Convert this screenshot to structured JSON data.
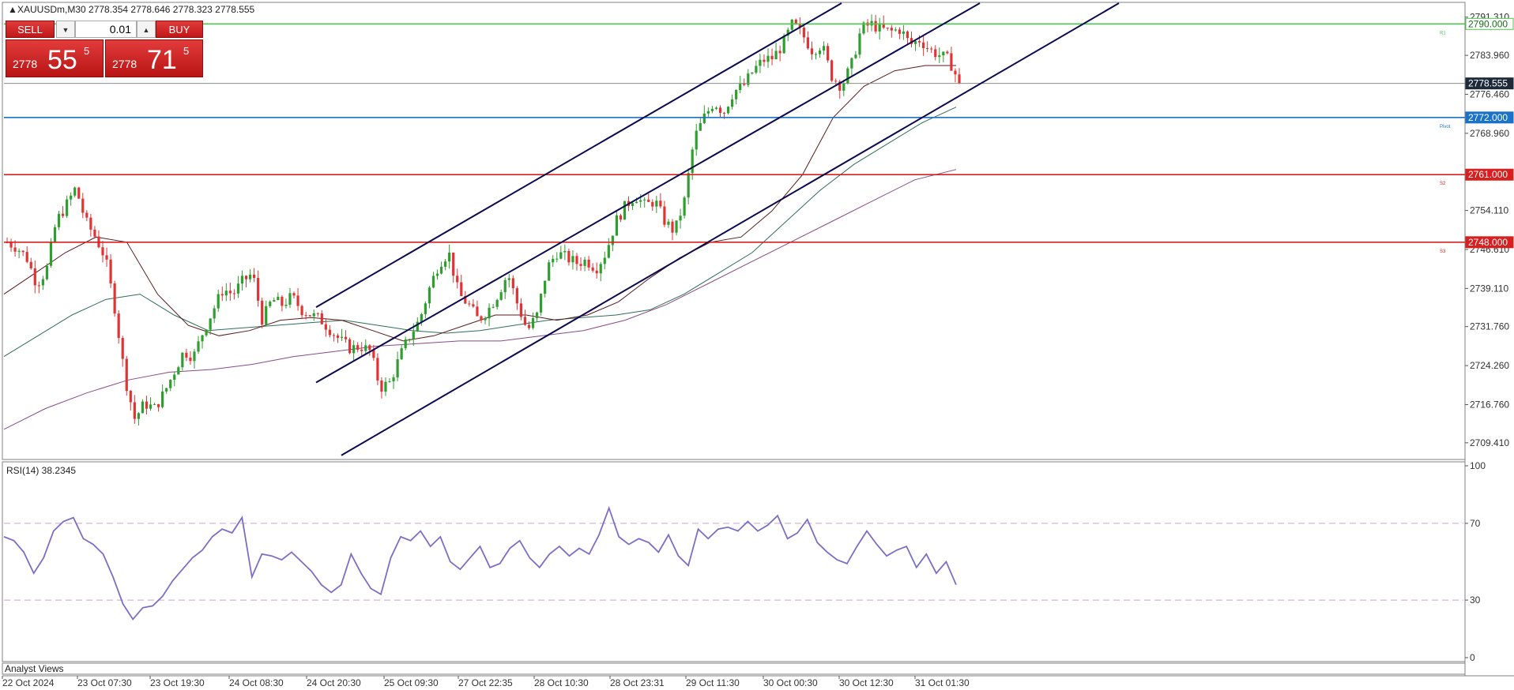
{
  "symbol_header": "XAUUSDm,M30  2778.354 2778.646 2778.323 2778.555",
  "trade_panel": {
    "sell_label": "SELL",
    "buy_label": "BUY",
    "lot_value": "0.01",
    "sell_price_prefix": "2778",
    "sell_price_big": "55",
    "sell_price_sup": "5",
    "buy_price_prefix": "2778",
    "buy_price_big": "71",
    "buy_price_sup": "5"
  },
  "indicator_label": "RSI(14) 38.2345",
  "analyst_views_label": "Analyst Views",
  "price_axis_labels": [
    "2791.310",
    "2783.960",
    "2776.460",
    "2768.960",
    "2754.110",
    "2746.610",
    "2739.110",
    "2731.760",
    "2724.260",
    "2716.760",
    "2709.410"
  ],
  "rsi_axis_labels": [
    "100",
    "70",
    "30",
    "0"
  ],
  "time_labels": [
    "22 Oct 2024",
    "23 Oct 07:30",
    "23 Oct 19:30",
    "24 Oct 08:30",
    "24 Oct 20:30",
    "25 Oct 09:30",
    "27 Oct 22:35",
    "28 Oct 10:30",
    "28 Oct 23:31",
    "29 Oct 11:30",
    "30 Oct 00:30",
    "30 Oct 12:30",
    "31 Oct 01:30"
  ],
  "level_tags": {
    "current": "2778.555",
    "r1": "2790.000",
    "pivot": "2772.000",
    "s2": "2761.000",
    "s3": "2748.000"
  },
  "level_small_labels": {
    "r1": "R1",
    "pivot": "Pivot",
    "s2": "S2",
    "s3": "S3"
  },
  "colors": {
    "bull": "#2e9e2e",
    "bear": "#e03434",
    "channel": "#0a0a50",
    "r1": "#4ec94e",
    "pivot": "#1a73c8",
    "support": "#d62020",
    "rsi": "#7a6fc6",
    "ma_fast": "#5a1a1a",
    "ma_mid": "#2e6e5a",
    "ma_slow": "#8a4a8a"
  },
  "chart_data": [
    {
      "type": "candlestick",
      "title": "XAUUSDm,M30",
      "timeframe": "M30",
      "ohlc_header": {
        "open": 2778.354,
        "high": 2778.646,
        "low": 2778.323,
        "close": 2778.555
      },
      "ylim": [
        2706.5,
        2794.0
      ],
      "x_ticks": [
        "22 Oct 2024",
        "23 Oct 07:30",
        "23 Oct 19:30",
        "24 Oct 08:30",
        "24 Oct 20:30",
        "25 Oct 09:30",
        "27 Oct 22:35",
        "28 Oct 10:30",
        "28 Oct 23:31",
        "29 Oct 11:30",
        "30 Oct 00:30",
        "30 Oct 12:30",
        "31 Oct 01:30"
      ],
      "close_path": [
        2748.0,
        2747.0,
        2745.0,
        2740.0,
        2742.5,
        2752.0,
        2755.0,
        2758.5,
        2752.0,
        2749.0,
        2745.0,
        2735.0,
        2722.0,
        2714.0,
        2717.0,
        2716.0,
        2719.0,
        2723.0,
        2727.0,
        2726.0,
        2731.0,
        2735.0,
        2739.0,
        2738.0,
        2740.5,
        2742.0,
        2733.0,
        2737.0,
        2736.0,
        2737.5,
        2735.0,
        2734.0,
        2733.0,
        2731.0,
        2729.0,
        2727.5,
        2728.0,
        2727.0,
        2720.0,
        2721.0,
        2726.0,
        2730.0,
        2733.0,
        2739.0,
        2744.0,
        2746.0,
        2738.0,
        2736.0,
        2733.0,
        2735.0,
        2738.0,
        2742.0,
        2736.0,
        2731.0,
        2734.0,
        2743.0,
        2746.0,
        2745.0,
        2744.0,
        2744.5,
        2743.0,
        2746.0,
        2752.0,
        2755.0,
        2757.0,
        2755.0,
        2756.0,
        2752.0,
        2750.0,
        2756.0,
        2768.0,
        2772.0,
        2775.0,
        2773.0,
        2777.0,
        2778.0,
        2781.0,
        2783.0,
        2783.5,
        2786.0,
        2790.0,
        2788.0,
        2785.0,
        2786.0,
        2780.0,
        2778.0,
        2782.0,
        2789.0,
        2790.0,
        2789.0,
        2788.5,
        2789.0,
        2786.0,
        2787.0,
        2785.0,
        2784.0,
        2783.0,
        2778.555
      ],
      "horizontal_levels": [
        {
          "name": "R1",
          "value": 2790.0
        },
        {
          "name": "Pivot",
          "value": 2772.0
        },
        {
          "name": "S2",
          "value": 2761.0
        },
        {
          "name": "S3",
          "value": 2748.0
        },
        {
          "name": "Bid",
          "value": 2778.555
        }
      ],
      "moving_averages": [
        {
          "name": "MA fast",
          "values": [
            2738.0,
            2742.0,
            2746.0,
            2749.0,
            2748.0,
            2738.0,
            2732.0,
            2730.0,
            2731.0,
            2733.0,
            2733.5,
            2733.0,
            2731.0,
            2729.0,
            2730.0,
            2732.0,
            2734.0,
            2734.0,
            2733.0,
            2734.0,
            2736.5,
            2741.0,
            2745.0,
            2748.0,
            2749.0,
            2754.0,
            2761.0,
            2772.0,
            2778.0,
            2781.0,
            2782.0,
            2782.0
          ]
        },
        {
          "name": "MA mid",
          "values": [
            2726.0,
            2730.0,
            2734.0,
            2737.0,
            2738.0,
            2734.0,
            2731.0,
            2731.5,
            2732.0,
            2732.5,
            2733.0,
            2732.0,
            2731.0,
            2730.5,
            2731.0,
            2732.0,
            2733.0,
            2733.5,
            2734.0,
            2735.0,
            2738.0,
            2742.0,
            2746.0,
            2752.0,
            2758.0,
            2763.0,
            2767.0,
            2771.0,
            2774.0
          ]
        },
        {
          "name": "MA slow",
          "values": [
            2712.0,
            2716.0,
            2719.0,
            2721.5,
            2723.0,
            2723.5,
            2724.5,
            2726.0,
            2727.0,
            2728.0,
            2728.5,
            2729.0,
            2729.0,
            2730.0,
            2731.0,
            2733.0,
            2736.0,
            2740.0,
            2744.0,
            2748.0,
            2752.0,
            2756.0,
            2760.0,
            2762.0
          ]
        }
      ],
      "channel_lines": [
        {
          "name": "upper",
          "from": {
            "x": "24 Oct 20:30",
            "y": 2735.5
          },
          "to": {
            "x": "30 Oct 12:30",
            "y": 2794.0
          }
        },
        {
          "name": "middle",
          "from": {
            "x": "24 Oct 20:30",
            "y": 2721.0
          },
          "to": {
            "x": "31 Oct 01:30",
            "y": 2794.0
          }
        },
        {
          "name": "lower",
          "from": {
            "x": "24 Oct 20:30",
            "y": 2707.0
          },
          "to": {
            "x": "31 Oct 01:30",
            "y": 2794.0
          }
        }
      ]
    },
    {
      "type": "line",
      "title": "RSI(14)",
      "current_value": 38.2345,
      "ylim": [
        0,
        100
      ],
      "y_ticks": [
        100,
        70,
        30,
        0
      ],
      "reference_lines": [
        70,
        30
      ],
      "series": [
        {
          "values": [
            63,
            61,
            55,
            44,
            52,
            66,
            71,
            73,
            62,
            59,
            54,
            42,
            28,
            20,
            26,
            27,
            32,
            40,
            46,
            52,
            56,
            63,
            67,
            65,
            73,
            42,
            54,
            53,
            51,
            55,
            50,
            45,
            38,
            34,
            38,
            54,
            44,
            36,
            33,
            52,
            63,
            61,
            66,
            58,
            63,
            50,
            46,
            52,
            58,
            47,
            49,
            57,
            61,
            52,
            47,
            54,
            58,
            53,
            57,
            54,
            64,
            78,
            63,
            59,
            62,
            60,
            55,
            64,
            53,
            48,
            67,
            62,
            67,
            68,
            66,
            71,
            66,
            69,
            74,
            62,
            65,
            72,
            60,
            55,
            51,
            49,
            58,
            66,
            59,
            53,
            56,
            58,
            47,
            54,
            44,
            50,
            38
          ]
        }
      ]
    }
  ]
}
